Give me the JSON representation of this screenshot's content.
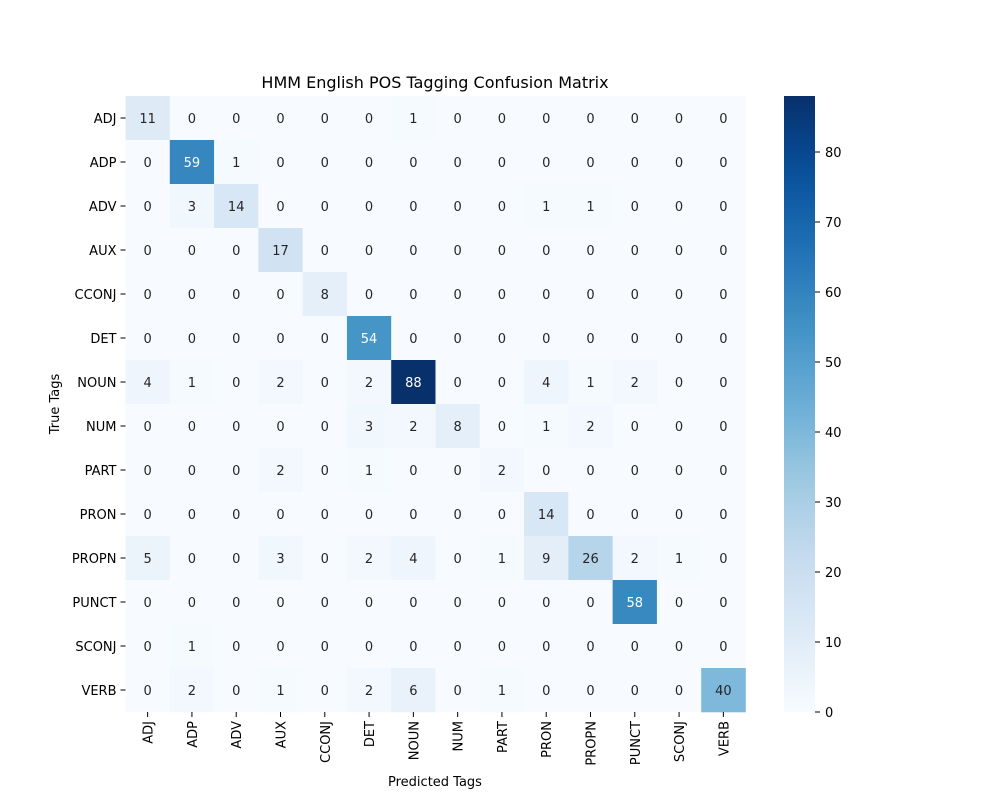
{
  "chart_data": {
    "type": "heatmap",
    "title": "HMM English POS Tagging Confusion Matrix",
    "xlabel": "Predicted Tags",
    "ylabel": "True Tags",
    "x_categories": [
      "ADJ",
      "ADP",
      "ADV",
      "AUX",
      "CCONJ",
      "DET",
      "NOUN",
      "NUM",
      "PART",
      "PRON",
      "PROPN",
      "PUNCT",
      "SCONJ",
      "VERB"
    ],
    "y_categories": [
      "ADJ",
      "ADP",
      "ADV",
      "AUX",
      "CCONJ",
      "DET",
      "NOUN",
      "NUM",
      "PART",
      "PRON",
      "PROPN",
      "PUNCT",
      "SCONJ",
      "VERB"
    ],
    "values": [
      [
        11,
        0,
        0,
        0,
        0,
        0,
        1,
        0,
        0,
        0,
        0,
        0,
        0,
        0
      ],
      [
        0,
        59,
        1,
        0,
        0,
        0,
        0,
        0,
        0,
        0,
        0,
        0,
        0,
        0
      ],
      [
        0,
        3,
        14,
        0,
        0,
        0,
        0,
        0,
        0,
        1,
        1,
        0,
        0,
        0
      ],
      [
        0,
        0,
        0,
        17,
        0,
        0,
        0,
        0,
        0,
        0,
        0,
        0,
        0,
        0
      ],
      [
        0,
        0,
        0,
        0,
        8,
        0,
        0,
        0,
        0,
        0,
        0,
        0,
        0,
        0
      ],
      [
        0,
        0,
        0,
        0,
        0,
        54,
        0,
        0,
        0,
        0,
        0,
        0,
        0,
        0
      ],
      [
        4,
        1,
        0,
        2,
        0,
        2,
        88,
        0,
        0,
        4,
        1,
        2,
        0,
        0
      ],
      [
        0,
        0,
        0,
        0,
        0,
        3,
        2,
        8,
        0,
        1,
        2,
        0,
        0,
        0
      ],
      [
        0,
        0,
        0,
        2,
        0,
        1,
        0,
        0,
        2,
        0,
        0,
        0,
        0,
        0
      ],
      [
        0,
        0,
        0,
        0,
        0,
        0,
        0,
        0,
        0,
        14,
        0,
        0,
        0,
        0
      ],
      [
        5,
        0,
        0,
        3,
        0,
        2,
        4,
        0,
        1,
        9,
        26,
        2,
        1,
        0
      ],
      [
        0,
        0,
        0,
        0,
        0,
        0,
        0,
        0,
        0,
        0,
        0,
        58,
        0,
        0
      ],
      [
        0,
        1,
        0,
        0,
        0,
        0,
        0,
        0,
        0,
        0,
        0,
        0,
        0,
        0
      ],
      [
        0,
        2,
        0,
        1,
        0,
        2,
        6,
        0,
        1,
        0,
        0,
        0,
        0,
        40
      ]
    ],
    "colormap": "Blues",
    "vmin": 0,
    "vmax": 88,
    "colorbar_ticks": [
      0,
      10,
      20,
      30,
      40,
      50,
      60,
      70,
      80
    ],
    "grid": false
  }
}
